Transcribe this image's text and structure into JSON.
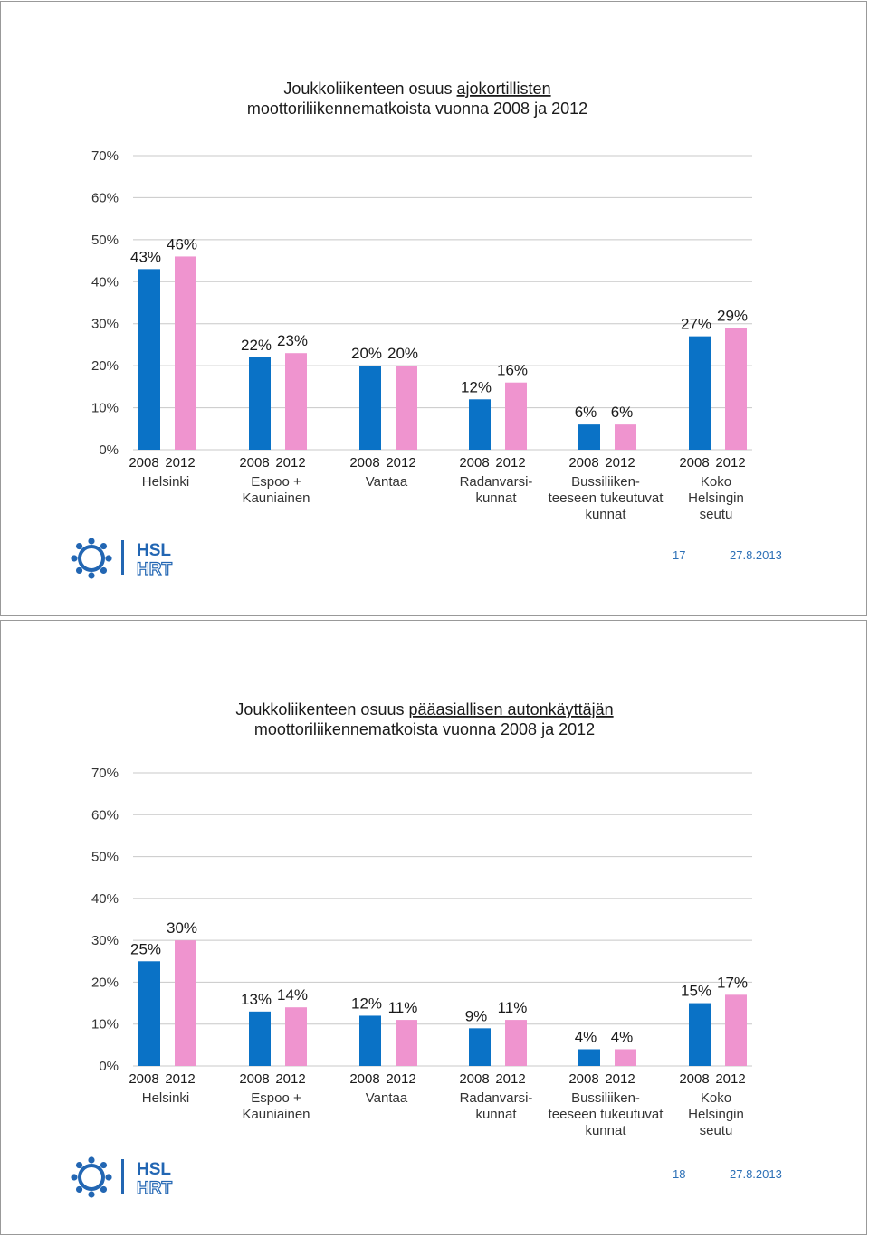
{
  "colors": {
    "y2008": "#0a72c6",
    "y2012": "#ef94cf",
    "brand": "#2266b3"
  },
  "brand": {
    "line1": "HSL",
    "line2": "HRT"
  },
  "chart_data": [
    {
      "type": "bar",
      "title": "Joukkoliikenteen osuus ajokortillisten moottoriliikennematkoista vuonna 2008 ja 2012",
      "title_parts": {
        "pre": "Joukkoliikenteen osuus ",
        "underlined": "ajokortillisten",
        "line2": "moottoriliikennematkoista vuonna 2008 ja 2012"
      },
      "ylim": [
        0,
        70
      ],
      "yticks": [
        "0%",
        "10%",
        "20%",
        "30%",
        "40%",
        "50%",
        "60%",
        "70%"
      ],
      "series_names": [
        "2008",
        "2012"
      ],
      "categories": [
        {
          "lines": [
            "Helsinki"
          ],
          "values": [
            43,
            46
          ],
          "labels": [
            "43%",
            "46%"
          ]
        },
        {
          "lines": [
            "Espoo +",
            "Kauniainen"
          ],
          "values": [
            22,
            23
          ],
          "labels": [
            "22%",
            "23%"
          ]
        },
        {
          "lines": [
            "Vantaa"
          ],
          "values": [
            20,
            20
          ],
          "labels": [
            "20%",
            "20%"
          ]
        },
        {
          "lines": [
            "Radanvarsi-",
            "kunnat"
          ],
          "values": [
            12,
            16
          ],
          "labels": [
            "12%",
            "16%"
          ]
        },
        {
          "lines": [
            "Bussiliiken-",
            "teeseen tukeutuvat",
            "kunnat"
          ],
          "values": [
            6,
            6
          ],
          "labels": [
            "6%",
            "6%"
          ]
        },
        {
          "lines": [
            "Koko",
            "Helsingin",
            "seutu"
          ],
          "values": [
            27,
            29
          ],
          "labels": [
            "27%",
            "29%"
          ]
        }
      ],
      "page_number": "17",
      "date": "27.8.2013"
    },
    {
      "type": "bar",
      "title": "Joukkoliikenteen osuus pääasiallisen autonkäyttäjän moottoriliikennematkoista vuonna 2008 ja 2012",
      "title_parts": {
        "pre": "Joukkoliikenteen osuus ",
        "underlined": "pääasiallisen autonkäyttäjän",
        "line2": "moottoriliikennematkoista vuonna 2008 ja 2012"
      },
      "ylim": [
        0,
        70
      ],
      "yticks": [
        "0%",
        "10%",
        "20%",
        "30%",
        "40%",
        "50%",
        "60%",
        "70%"
      ],
      "series_names": [
        "2008",
        "2012"
      ],
      "categories": [
        {
          "lines": [
            "Helsinki"
          ],
          "values": [
            25,
            30
          ],
          "labels": [
            "25%",
            "30%"
          ]
        },
        {
          "lines": [
            "Espoo +",
            "Kauniainen"
          ],
          "values": [
            13,
            14
          ],
          "labels": [
            "13%",
            "14%"
          ]
        },
        {
          "lines": [
            "Vantaa"
          ],
          "values": [
            12,
            11
          ],
          "labels": [
            "12%",
            "11%"
          ]
        },
        {
          "lines": [
            "Radanvarsi-",
            "kunnat"
          ],
          "values": [
            9,
            11
          ],
          "labels": [
            "9%",
            "11%"
          ]
        },
        {
          "lines": [
            "Bussiliiken-",
            "teeseen tukeutuvat",
            "kunnat"
          ],
          "values": [
            4,
            4
          ],
          "labels": [
            "4%",
            "4%"
          ]
        },
        {
          "lines": [
            "Koko",
            "Helsingin",
            "seutu"
          ],
          "values": [
            15,
            17
          ],
          "labels": [
            "15%",
            "17%"
          ]
        }
      ],
      "page_number": "18",
      "date": "27.8.2013"
    }
  ]
}
